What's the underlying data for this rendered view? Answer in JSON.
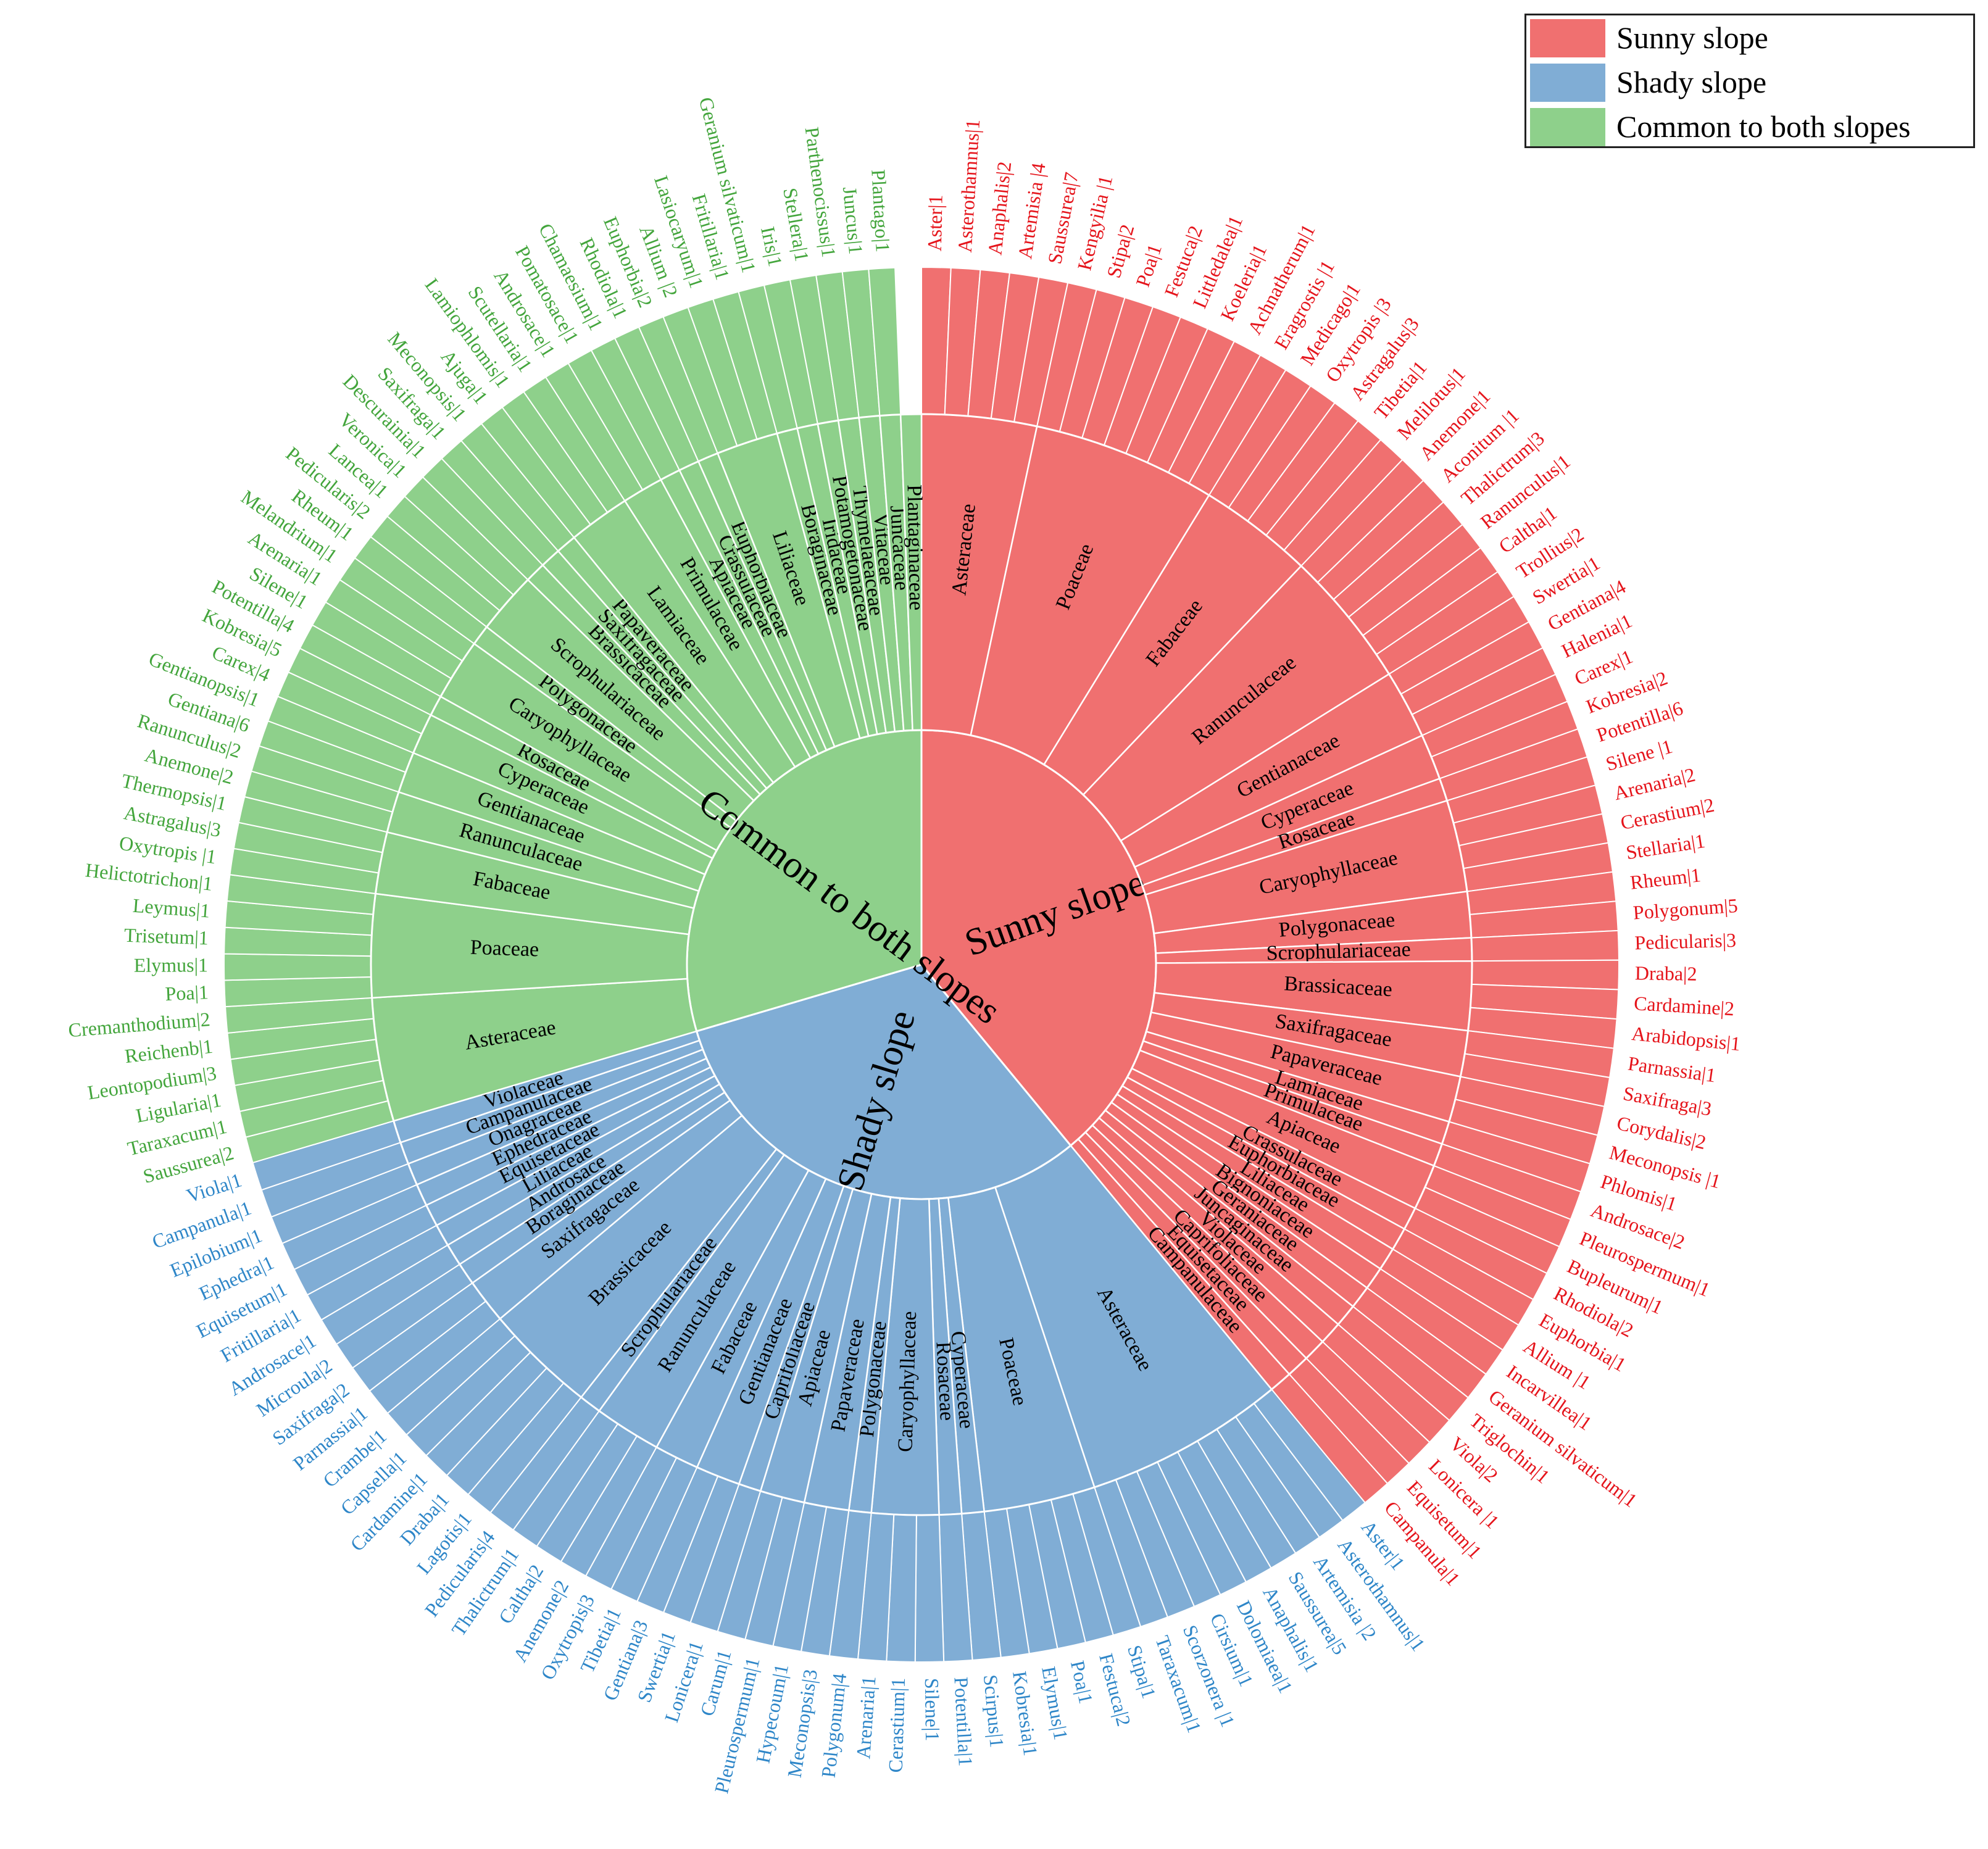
{
  "chart_data": {
    "type": "sunburst",
    "title": "",
    "legend": {
      "position": "top-right",
      "entries": [
        {
          "name": "Sunny slope",
          "color": "#f07070"
        },
        {
          "name": "Shady slope",
          "color": "#80add5"
        },
        {
          "name": "Common to both slopes",
          "color": "#8ed08b"
        }
      ]
    },
    "groups": [
      {
        "name": "Sunny slope",
        "color": "#f07070",
        "label_color": "#e5141b",
        "families": [
          {
            "name": "Asteraceae",
            "genera": [
              "Aster|1",
              "Asterothamnus|1",
              "Anaphalis|2",
              "Artemisia |4",
              "Saussurea|7"
            ]
          },
          {
            "name": "Poaceae",
            "genera": [
              "Kengyilia |1",
              "Stipa|2",
              "Poa|1",
              "Festuca|2",
              "Littledalea|1",
              "Koeleria|1",
              "Achnatherum|1",
              "Eragrostis |1"
            ]
          },
          {
            "name": "Fabaceae",
            "genera": [
              "Medicago|1",
              "Oxytropis |3",
              "Astragalus|3",
              "Tibetia|1",
              "Melilotus|1"
            ]
          },
          {
            "name": "Ranunculaceae",
            "genera": [
              "Anemone|1",
              "Aconitum |1",
              "Thalictrum|3",
              "Ranunculus|1",
              "Caltha|1",
              "Trollius|2"
            ]
          },
          {
            "name": "Gentianaceae",
            "genera": [
              "Swertia|1",
              "Gentiana|4",
              "Halenia|1"
            ]
          },
          {
            "name": "Cyperaceae",
            "genera": [
              "Carex|1",
              "Kobresia|2"
            ]
          },
          {
            "name": "Rosaceae",
            "genera": [
              "Potentilla|6"
            ]
          },
          {
            "name": "Caryophyllaceae",
            "genera": [
              "Silene |1",
              "Arenaria|2",
              "Cerastium|2",
              "Stellaria|1"
            ]
          },
          {
            "name": "Polygonaceae",
            "genera": [
              "Rheum|1",
              "Polygonum|5"
            ]
          },
          {
            "name": "Scrophulariaceae",
            "genera": [
              "Pedicularis|3"
            ]
          },
          {
            "name": "Brassicaceae",
            "genera": [
              "Draba|2",
              "Cardamine|2",
              "Arabidopsis|1"
            ]
          },
          {
            "name": "Saxifragaceae",
            "genera": [
              "Parnassia|1",
              "Saxifraga|3"
            ]
          },
          {
            "name": "Papaveraceae",
            "genera": [
              "Corydalis|2",
              "Meconopsis |1"
            ]
          },
          {
            "name": "Lamiaceae",
            "genera": [
              "Phlomis|1"
            ]
          },
          {
            "name": "Primulaceae",
            "genera": [
              "Androsace|2"
            ]
          },
          {
            "name": "Apiaceae",
            "genera": [
              "Pleurospermum|1",
              "Bupleurum|1"
            ]
          },
          {
            "name": "Crassulaceae",
            "genera": [
              "Rhodiola|2"
            ]
          },
          {
            "name": "Euphorbiaceae",
            "genera": [
              "Euphorbia|1"
            ]
          },
          {
            "name": "Liliaceae",
            "genera": [
              "Allium |1"
            ]
          },
          {
            "name": "Bignoniaceae",
            "genera": [
              "Incarvillea|1"
            ]
          },
          {
            "name": "Geraniaceae",
            "genera": [
              "Geranium silvaticum|1"
            ]
          },
          {
            "name": "Juncaginaceae",
            "genera": [
              "Triglochin|1"
            ]
          },
          {
            "name": "Violaceae",
            "genera": [
              "Viola|2"
            ]
          },
          {
            "name": "Caprifoliaceae",
            "genera": [
              "Lonicera |1"
            ]
          },
          {
            "name": "Equisetaceae",
            "genera": [
              "Equisetum|1"
            ]
          },
          {
            "name": "Campanulaceae",
            "genera": [
              "Campanula|1"
            ]
          }
        ]
      },
      {
        "name": "Shady slope",
        "color": "#80add5",
        "label_color": "#2e86c8",
        "families": [
          {
            "name": "Asteraceae",
            "genera": [
              "Aster|1",
              "Asterothamnus|1",
              "Artemisia |2",
              "Saussurea|5",
              "Anaphalis|1",
              "Dolomiaea|1",
              "Cirsium|1",
              "Scorzonera |1",
              "Taraxacum|1"
            ]
          },
          {
            "name": "Poaceae",
            "genera": [
              "Stipa|1",
              "Festuca|2",
              "Poa|1",
              "Elymus|1",
              "Kobresia|1"
            ]
          },
          {
            "name": "Cyperaceae",
            "genera": [
              "Scirpus|1"
            ]
          },
          {
            "name": "Rosaceae",
            "genera": [
              "Potentilla|1"
            ]
          },
          {
            "name": "Caryophyllaceae",
            "genera": [
              "Silene|1",
              "Cerastium|1",
              "Arenaria|1"
            ]
          },
          {
            "name": "Polygonaceae",
            "genera": [
              "Polygonum|4"
            ]
          },
          {
            "name": "Papaveraceae",
            "genera": [
              "Meconopsis|3",
              "Hypecoum|1"
            ]
          },
          {
            "name": "Apiaceae",
            "genera": [
              "Pleurospermum|1",
              "Carum|1"
            ]
          },
          {
            "name": "Caprifoliaceae",
            "genera": [
              "Lonicera|1"
            ]
          },
          {
            "name": "Gentianaceae",
            "genera": [
              "Swertia|1",
              "Gentiana|3"
            ]
          },
          {
            "name": "Fabaceae",
            "genera": [
              "Tibetia|1",
              "Oxytropis|3"
            ]
          },
          {
            "name": "Ranunculaceae",
            "genera": [
              "Anemone|2",
              "Caltha|2",
              "Thalictrum|1"
            ]
          },
          {
            "name": "Scrophulariaceae",
            "genera": [
              "Pedicularis|4"
            ]
          },
          {
            "name": "Brassicaceae",
            "genera": [
              "Lagotis|1",
              "Draba|1",
              "Cardamine|1",
              "Capsella|1",
              "Crambe|1"
            ]
          },
          {
            "name": "Saxifragaceae",
            "genera": [
              "Parnassia|1",
              "Saxifraga|2"
            ]
          },
          {
            "name": "Boraginaceae",
            "genera": [
              "Microula|2"
            ]
          },
          {
            "name": "Androsace",
            "genera": [
              "Androsace|1"
            ]
          },
          {
            "name": "Liliaceae",
            "genera": [
              "Fritillaria|1"
            ]
          },
          {
            "name": "Equisetaceae",
            "genera": [
              "Equisetum|1"
            ]
          },
          {
            "name": "Ephedraceae",
            "genera": [
              "Ephedra|1"
            ]
          },
          {
            "name": "Onagraceae",
            "genera": [
              "Epilobium|1"
            ]
          },
          {
            "name": "Campanulaceae",
            "genera": [
              "Campanula|1"
            ]
          },
          {
            "name": "Violaceae",
            "genera": [
              "Viola|1"
            ]
          }
        ]
      },
      {
        "name": "Common to both slopes",
        "color": "#8ed08b",
        "label_color": "#43a53c",
        "families": [
          {
            "name": "Asteraceae",
            "genera": [
              "Saussurea|2",
              "Taraxacum|1",
              "Ligularia|1",
              "Leontopodium|3",
              "Reichenb|1",
              "Cremanthodium|2"
            ]
          },
          {
            "name": "Poaceae",
            "genera": [
              "Poa|1",
              "Elymus|1",
              "Trisetum|1",
              "Leymus|1",
              "Helictotrichon|1"
            ]
          },
          {
            "name": "Fabaceae",
            "genera": [
              "Oxytropis |1",
              "Astragalus|3",
              "Thermopsis|1"
            ]
          },
          {
            "name": "Ranunculaceae",
            "genera": [
              "Anemone|2",
              "Ranunculus|2"
            ]
          },
          {
            "name": "Gentianaceae",
            "genera": [
              "Gentiana|6",
              "Gentianopsis|1"
            ]
          },
          {
            "name": "Cyperaceae",
            "genera": [
              "Carex|4",
              "Kobresia|5"
            ]
          },
          {
            "name": "Rosaceae",
            "genera": [
              "Potentilla|4"
            ]
          },
          {
            "name": "Caryophyllaceae",
            "genera": [
              "Silene|1",
              "Arenaria|1",
              "Melandrium|1"
            ]
          },
          {
            "name": "Polygonaceae",
            "genera": [
              "Rheum|1"
            ]
          },
          {
            "name": "Scrophulariaceae",
            "genera": [
              "Pedicularis|2",
              "Lancea|1",
              "Veronica|1"
            ]
          },
          {
            "name": "Brassicaceae",
            "genera": [
              "Descurainia|1"
            ]
          },
          {
            "name": "Saxifragaceae",
            "genera": [
              "Saxifraga|1"
            ]
          },
          {
            "name": "Papaveraceae",
            "genera": [
              "Meconopsis|1"
            ]
          },
          {
            "name": "Lamiaceae",
            "genera": [
              "Ajuga|1",
              "Lamiophlomis|1",
              "Scutellaria|1"
            ]
          },
          {
            "name": "Primulaceae",
            "genera": [
              "Androsace|1",
              "Pomatosace|1"
            ]
          },
          {
            "name": "Apiaceae",
            "genera": [
              "Chamaesium|1"
            ]
          },
          {
            "name": "Crassulaceae",
            "genera": [
              "Rhodiola|1"
            ]
          },
          {
            "name": "Euphorbiaceae",
            "genera": [
              "Euphorbia|2"
            ]
          },
          {
            "name": "Liliaceae",
            "genera": [
              "Allium |2",
              "Lasiocaryum|1",
              "Fritillaria|1"
            ]
          },
          {
            "name": "Boraginaceae",
            "genera": [
              "Geranium silvaticum|1"
            ]
          },
          {
            "name": "Iridaceae",
            "genera": [
              "Iris|1"
            ]
          },
          {
            "name": "Potamogetonaceae",
            "genera": [
              "Stellera|1"
            ]
          },
          {
            "name": "Thymelaeaceae",
            "genera": [
              "Parthenocissus|1"
            ]
          },
          {
            "name": "Vitaceae",
            "genera": [
              "Juncus|1"
            ]
          },
          {
            "name": "Juncaceae",
            "genera": [
              "Plantago|1"
            ]
          },
          {
            "name": "Plantaginaceae",
            "genera": []
          }
        ]
      }
    ],
    "group_angles": {
      "Sunny slope": [
        0,
        140.5
      ],
      "Shady slope": [
        140.5,
        253.5
      ],
      "Common to both slopes": [
        253.5,
        360
      ]
    }
  }
}
